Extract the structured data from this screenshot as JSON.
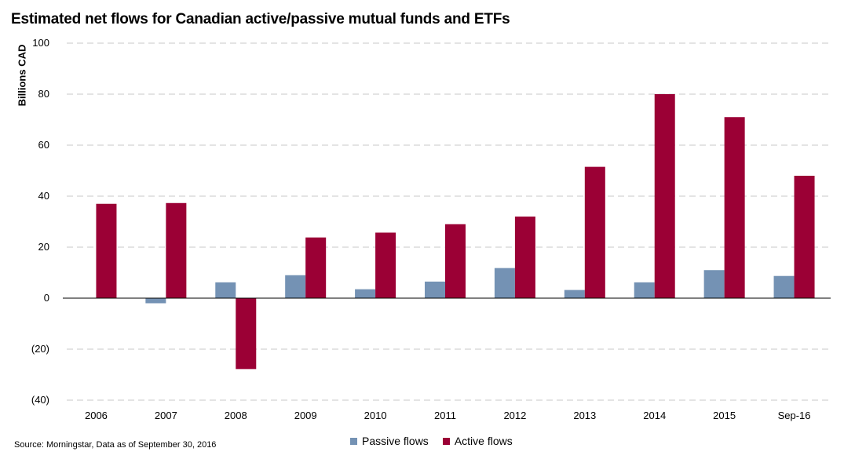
{
  "title": "Estimated net flows for Canadian active/passive mutual funds and ETFs",
  "source": "Source: Morningstar,  Data as of September 30, 2016",
  "colors": {
    "passive": "#7492b4",
    "active": "#9b0035",
    "grid": "#c8c8c8"
  },
  "chart_data": {
    "type": "bar",
    "title": "Estimated net flows for Canadian active/passive mutual funds and ETFs",
    "xlabel": "",
    "ylabel": "Billions CAD",
    "ylim": [
      -40,
      100
    ],
    "yticks": [
      100,
      80,
      60,
      40,
      20,
      0,
      -20,
      -40
    ],
    "ytick_labels": [
      "100",
      "80",
      "60",
      "40",
      "20",
      "0",
      "(20)",
      "(40)"
    ],
    "grid": true,
    "legend_position": "bottom",
    "categories": [
      "2006",
      "2007",
      "2008",
      "2009",
      "2010",
      "2011",
      "2012",
      "2013",
      "2014",
      "2015",
      "Sep-16"
    ],
    "series": [
      {
        "name": "Passive flows",
        "values": [
          0,
          -2,
          6.2,
          9,
          3.5,
          6.5,
          11.8,
          3.2,
          6.2,
          11,
          8.7
        ]
      },
      {
        "name": "Active flows",
        "values": [
          37,
          37.3,
          -27.8,
          23.8,
          25.7,
          29,
          32,
          51.5,
          80,
          71,
          48
        ]
      }
    ]
  }
}
